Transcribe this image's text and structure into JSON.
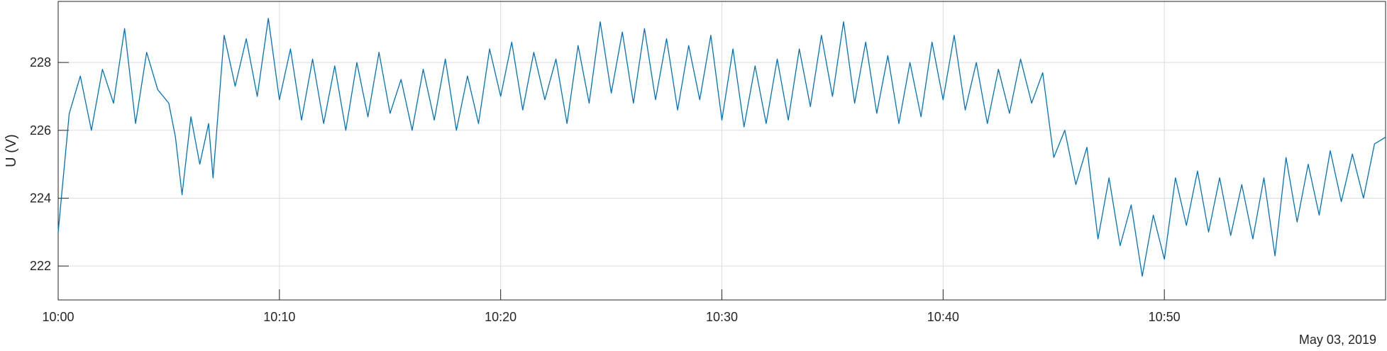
{
  "chart_data": {
    "type": "line",
    "ylabel": "U (V)",
    "xlabel": "",
    "date_label": "May 03, 2019",
    "x_tick_labels": [
      "10:00",
      "10:10",
      "10:20",
      "10:30",
      "10:40",
      "10:50"
    ],
    "y_tick_labels": [
      "222",
      "224",
      "226",
      "228"
    ],
    "y_ticks": [
      222,
      224,
      226,
      228
    ],
    "ylim": [
      221.0,
      229.8
    ],
    "xlim": [
      "10:00",
      "11:00"
    ],
    "grid": true,
    "line_color": "#0072BD",
    "series": [
      {
        "values": [
          [
            "10:00",
            223.0
          ],
          [
            "10:00.5",
            226.5
          ],
          [
            "10:01",
            227.6
          ],
          [
            "10:01.5",
            226.0
          ],
          [
            "10:02",
            227.8
          ],
          [
            "10:02.5",
            226.8
          ],
          [
            "10:03",
            229.0
          ],
          [
            "10:03.5",
            226.2
          ],
          [
            "10:04",
            228.3
          ],
          [
            "10:04.5",
            227.2
          ],
          [
            "10:05",
            226.8
          ],
          [
            "10:05.3",
            225.8
          ],
          [
            "10:05.6",
            224.1
          ],
          [
            "10:06",
            226.4
          ],
          [
            "10:06.4",
            225.0
          ],
          [
            "10:06.8",
            226.2
          ],
          [
            "10:07",
            224.6
          ],
          [
            "10:07.5",
            228.8
          ],
          [
            "10:08",
            227.3
          ],
          [
            "10:08.5",
            228.7
          ],
          [
            "10:09",
            227.0
          ],
          [
            "10:09.5",
            229.3
          ],
          [
            "10:10",
            226.9
          ],
          [
            "10:10.5",
            228.4
          ],
          [
            "10:11",
            226.3
          ],
          [
            "10:11.5",
            228.1
          ],
          [
            "10:12",
            226.2
          ],
          [
            "10:12.5",
            227.9
          ],
          [
            "10:13",
            226.0
          ],
          [
            "10:13.5",
            228.0
          ],
          [
            "10:14",
            226.4
          ],
          [
            "10:14.5",
            228.3
          ],
          [
            "10:15",
            226.5
          ],
          [
            "10:15.5",
            227.5
          ],
          [
            "10:16",
            226.0
          ],
          [
            "10:16.5",
            227.8
          ],
          [
            "10:17",
            226.3
          ],
          [
            "10:17.5",
            228.1
          ],
          [
            "10:18",
            226.0
          ],
          [
            "10:18.5",
            227.6
          ],
          [
            "10:19",
            226.2
          ],
          [
            "10:19.5",
            228.4
          ],
          [
            "10:20",
            227.0
          ],
          [
            "10:20.5",
            228.6
          ],
          [
            "10:21",
            226.6
          ],
          [
            "10:21.5",
            228.3
          ],
          [
            "10:22",
            226.9
          ],
          [
            "10:22.5",
            228.1
          ],
          [
            "10:23",
            226.2
          ],
          [
            "10:23.5",
            228.5
          ],
          [
            "10:24",
            226.8
          ],
          [
            "10:24.5",
            229.2
          ],
          [
            "10:25",
            227.1
          ],
          [
            "10:25.5",
            228.9
          ],
          [
            "10:26",
            226.8
          ],
          [
            "10:26.5",
            229.0
          ],
          [
            "10:27",
            226.9
          ],
          [
            "10:27.5",
            228.7
          ],
          [
            "10:28",
            226.6
          ],
          [
            "10:28.5",
            228.5
          ],
          [
            "10:29",
            226.9
          ],
          [
            "10:29.5",
            228.8
          ],
          [
            "10:30",
            226.3
          ],
          [
            "10:30.5",
            228.4
          ],
          [
            "10:31",
            226.1
          ],
          [
            "10:31.5",
            227.9
          ],
          [
            "10:32",
            226.2
          ],
          [
            "10:32.5",
            228.1
          ],
          [
            "10:33",
            226.3
          ],
          [
            "10:33.5",
            228.4
          ],
          [
            "10:34",
            226.7
          ],
          [
            "10:34.5",
            228.8
          ],
          [
            "10:35",
            227.0
          ],
          [
            "10:35.5",
            229.2
          ],
          [
            "10:36",
            226.8
          ],
          [
            "10:36.5",
            228.6
          ],
          [
            "10:37",
            226.5
          ],
          [
            "10:37.5",
            228.2
          ],
          [
            "10:38",
            226.2
          ],
          [
            "10:38.5",
            228.0
          ],
          [
            "10:39",
            226.4
          ],
          [
            "10:39.5",
            228.6
          ],
          [
            "10:40",
            226.9
          ],
          [
            "10:40.5",
            228.8
          ],
          [
            "10:41",
            226.6
          ],
          [
            "10:41.5",
            228.0
          ],
          [
            "10:42",
            226.2
          ],
          [
            "10:42.5",
            227.8
          ],
          [
            "10:43",
            226.5
          ],
          [
            "10:43.5",
            228.1
          ],
          [
            "10:44",
            226.8
          ],
          [
            "10:44.5",
            227.7
          ],
          [
            "10:45",
            225.2
          ],
          [
            "10:45.5",
            226.0
          ],
          [
            "10:46",
            224.4
          ],
          [
            "10:46.5",
            225.5
          ],
          [
            "10:47",
            222.8
          ],
          [
            "10:47.5",
            224.6
          ],
          [
            "10:48",
            222.6
          ],
          [
            "10:48.5",
            223.8
          ],
          [
            "10:49",
            221.7
          ],
          [
            "10:49.5",
            223.5
          ],
          [
            "10:50",
            222.2
          ],
          [
            "10:50.5",
            224.6
          ],
          [
            "10:51",
            223.2
          ],
          [
            "10:51.5",
            224.8
          ],
          [
            "10:52",
            223.0
          ],
          [
            "10:52.5",
            224.6
          ],
          [
            "10:53",
            222.9
          ],
          [
            "10:53.5",
            224.4
          ],
          [
            "10:54",
            222.8
          ],
          [
            "10:54.5",
            224.6
          ],
          [
            "10:55",
            222.3
          ],
          [
            "10:55.5",
            225.2
          ],
          [
            "10:56",
            223.3
          ],
          [
            "10:56.5",
            225.0
          ],
          [
            "10:57",
            223.5
          ],
          [
            "10:57.5",
            225.4
          ],
          [
            "10:58",
            223.9
          ],
          [
            "10:58.5",
            225.3
          ],
          [
            "10:59",
            224.0
          ],
          [
            "10:59.5",
            225.6
          ],
          [
            "11:00",
            225.8
          ]
        ]
      }
    ]
  }
}
